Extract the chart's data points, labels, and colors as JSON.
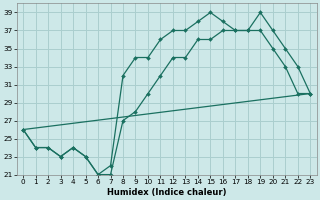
{
  "xlabel": "Humidex (Indice chaleur)",
  "xlim": [
    -0.5,
    23.5
  ],
  "ylim": [
    21,
    40
  ],
  "yticks": [
    21,
    23,
    25,
    27,
    29,
    31,
    33,
    35,
    37,
    39
  ],
  "xticks": [
    0,
    1,
    2,
    3,
    4,
    5,
    6,
    7,
    8,
    9,
    10,
    11,
    12,
    13,
    14,
    15,
    16,
    17,
    18,
    19,
    20,
    21,
    22,
    23
  ],
  "bg_color": "#cde8e8",
  "grid_color": "#aacece",
  "line_color": "#1a7060",
  "line1_x": [
    0,
    1,
    2,
    3,
    4,
    5,
    6,
    7,
    8,
    9,
    10,
    11,
    12,
    13,
    14,
    15,
    16,
    17,
    18,
    19,
    20,
    21,
    22,
    23
  ],
  "line1_y": [
    26,
    24,
    24,
    23,
    24,
    23,
    21,
    22,
    32,
    34,
    34,
    36,
    37,
    37,
    38,
    39,
    38,
    37,
    37,
    39,
    37,
    35,
    33,
    30
  ],
  "line2_x": [
    0,
    1,
    2,
    3,
    4,
    5,
    6,
    7,
    8,
    9,
    10,
    11,
    12,
    13,
    14,
    15,
    16,
    17,
    18,
    19,
    20,
    21,
    22,
    23
  ],
  "line2_y": [
    26,
    24,
    24,
    23,
    24,
    23,
    21,
    21,
    27,
    28,
    30,
    32,
    34,
    34,
    36,
    36,
    37,
    37,
    37,
    37,
    35,
    33,
    30,
    30
  ],
  "line3_x": [
    0,
    23
  ],
  "line3_y": [
    26,
    30
  ]
}
